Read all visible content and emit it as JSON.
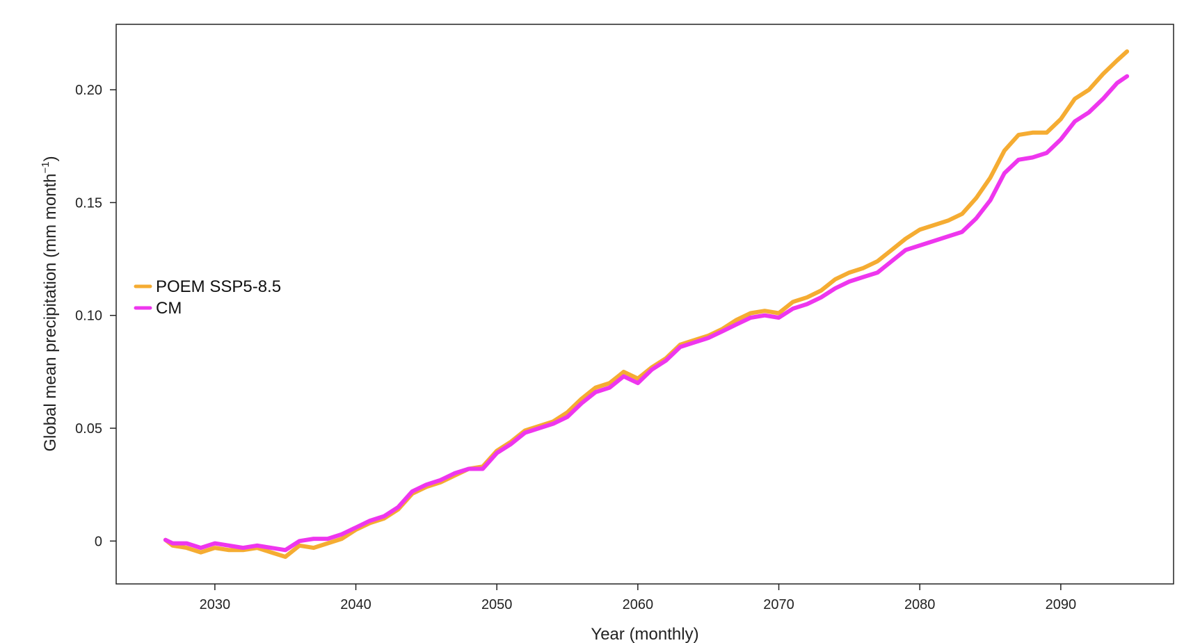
{
  "chart_data": {
    "type": "line",
    "xlabel": "Year (monthly)",
    "ylabel": "Global mean precipitation (mm month",
    "ylabel_sup": "−1",
    "ylabel_close": ")",
    "xlim": [
      2023,
      2098
    ],
    "ylim": [
      -0.019,
      0.229
    ],
    "x_ticks": [
      2030,
      2040,
      2050,
      2060,
      2070,
      2080,
      2090
    ],
    "x_tick_labels": [
      "2030",
      "2040",
      "2050",
      "2060",
      "2070",
      "2080",
      "2090"
    ],
    "y_ticks": [
      0,
      0.05,
      0.1,
      0.15,
      0.2
    ],
    "y_tick_labels": [
      "0",
      "0.05",
      "0.10",
      "0.15",
      "0.20"
    ],
    "grid": false,
    "legend_position": "left",
    "x": [
      2026.5,
      2027,
      2028,
      2029,
      2030,
      2031,
      2032,
      2033,
      2034,
      2035,
      2036,
      2037,
      2038,
      2039,
      2040,
      2041,
      2042,
      2043,
      2044,
      2045,
      2046,
      2047,
      2048,
      2049,
      2050,
      2051,
      2052,
      2053,
      2054,
      2055,
      2056,
      2057,
      2058,
      2059,
      2060,
      2061,
      2062,
      2063,
      2064,
      2065,
      2066,
      2067,
      2068,
      2069,
      2070,
      2071,
      2072,
      2073,
      2074,
      2075,
      2076,
      2077,
      2078,
      2079,
      2080,
      2081,
      2082,
      2083,
      2084,
      2085,
      2086,
      2087,
      2088,
      2089,
      2090,
      2091,
      2092,
      2093,
      2094,
      2094.7
    ],
    "series": [
      {
        "name": "POEM SSP5-8.5",
        "color": "#F5AC32",
        "values": [
          0.0005,
          -0.002,
          -0.003,
          -0.005,
          -0.003,
          -0.004,
          -0.004,
          -0.003,
          -0.005,
          -0.007,
          -0.002,
          -0.003,
          -0.001,
          0.001,
          0.005,
          0.008,
          0.01,
          0.014,
          0.021,
          0.024,
          0.026,
          0.029,
          0.032,
          0.033,
          0.04,
          0.044,
          0.049,
          0.051,
          0.053,
          0.057,
          0.063,
          0.068,
          0.07,
          0.075,
          0.072,
          0.077,
          0.081,
          0.087,
          0.089,
          0.091,
          0.094,
          0.098,
          0.101,
          0.102,
          0.101,
          0.106,
          0.108,
          0.111,
          0.116,
          0.119,
          0.121,
          0.124,
          0.129,
          0.134,
          0.138,
          0.14,
          0.142,
          0.145,
          0.152,
          0.161,
          0.173,
          0.18,
          0.181,
          0.181,
          0.187,
          0.196,
          0.2,
          0.207,
          0.213,
          0.217
        ]
      },
      {
        "name": "CM",
        "color": "#EE36EE",
        "values": [
          0.0005,
          -0.001,
          -0.001,
          -0.003,
          -0.001,
          -0.002,
          -0.003,
          -0.002,
          -0.003,
          -0.004,
          0.0,
          0.001,
          0.001,
          0.003,
          0.006,
          0.009,
          0.011,
          0.015,
          0.022,
          0.025,
          0.027,
          0.03,
          0.032,
          0.032,
          0.039,
          0.043,
          0.048,
          0.05,
          0.052,
          0.055,
          0.061,
          0.066,
          0.068,
          0.073,
          0.07,
          0.076,
          0.08,
          0.086,
          0.088,
          0.09,
          0.093,
          0.096,
          0.099,
          0.1,
          0.099,
          0.103,
          0.105,
          0.108,
          0.112,
          0.115,
          0.117,
          0.119,
          0.124,
          0.129,
          0.131,
          0.133,
          0.135,
          0.137,
          0.143,
          0.151,
          0.163,
          0.169,
          0.17,
          0.172,
          0.178,
          0.186,
          0.19,
          0.196,
          0.203,
          0.206
        ]
      }
    ]
  }
}
